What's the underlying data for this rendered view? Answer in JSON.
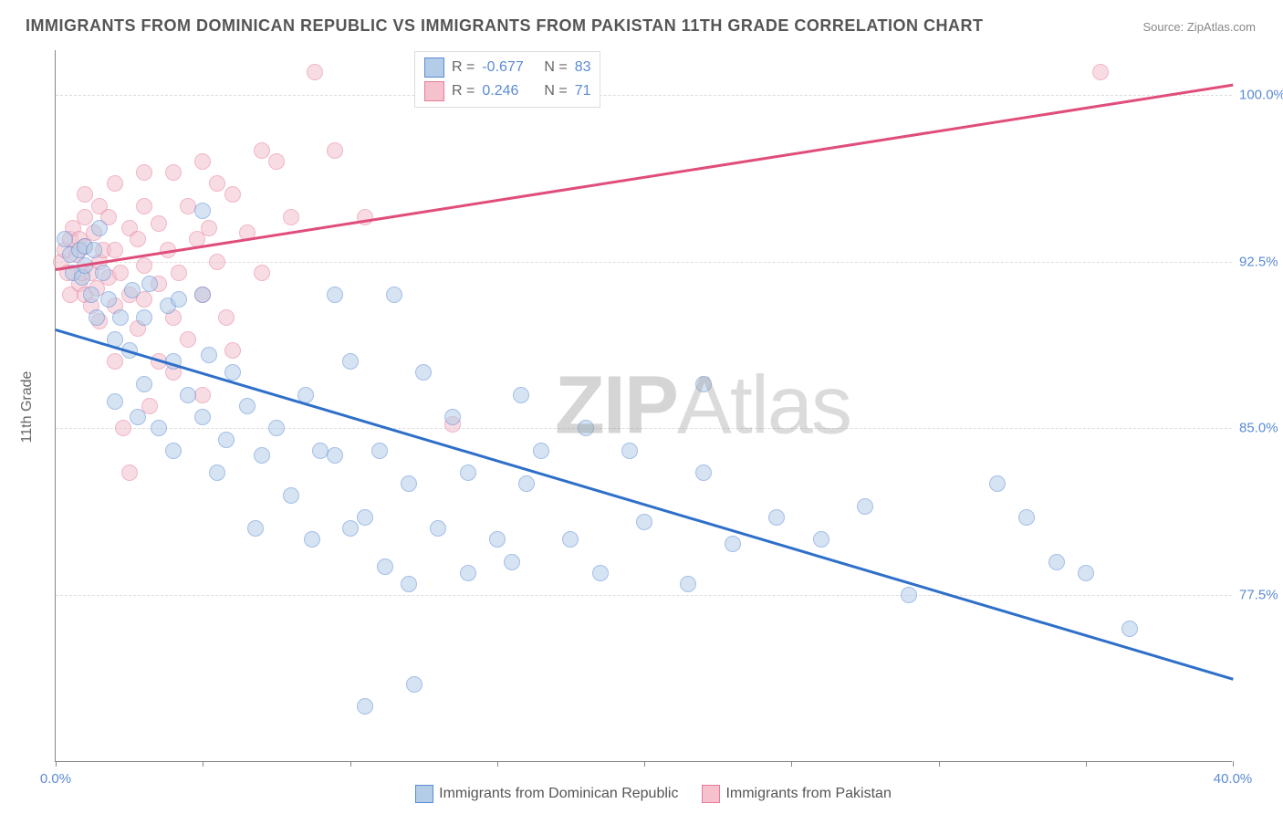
{
  "title": "IMMIGRANTS FROM DOMINICAN REPUBLIC VS IMMIGRANTS FROM PAKISTAN 11TH GRADE CORRELATION CHART",
  "source_prefix": "Source: ",
  "source_link": "ZipAtlas.com",
  "ylabel": "11th Grade",
  "watermark": {
    "bold": "ZIP",
    "light": "Atlas"
  },
  "chart": {
    "type": "scatter",
    "xlim": [
      0.0,
      40.0
    ],
    "ylim": [
      70.0,
      102.0
    ],
    "xticks": [
      0,
      5,
      10,
      15,
      20,
      25,
      30,
      35,
      40
    ],
    "xtick_labels_shown": {
      "0": "0.0%",
      "40": "40.0%"
    },
    "yticks": [
      77.5,
      85.0,
      92.5,
      100.0
    ],
    "ytick_labels": [
      "77.5%",
      "85.0%",
      "92.5%",
      "100.0%"
    ],
    "grid_color": "#dddddd",
    "axis_color": "#888888",
    "background_color": "#ffffff"
  },
  "series": [
    {
      "name": "Immigrants from Dominican Republic",
      "fill_color": "#b3cde8",
      "stroke_color": "#5b8bd4",
      "line_color": "#2e6fc9",
      "R": "-0.677",
      "N": "83",
      "trend": {
        "x1": 0.0,
        "y1": 89.5,
        "x2": 40.0,
        "y2": 73.8
      },
      "points": [
        [
          0.3,
          93.5
        ],
        [
          0.5,
          92.8
        ],
        [
          0.6,
          92.0
        ],
        [
          0.8,
          93.0
        ],
        [
          0.9,
          91.8
        ],
        [
          1.0,
          92.3
        ],
        [
          1.0,
          93.2
        ],
        [
          1.2,
          91.0
        ],
        [
          1.3,
          93.0
        ],
        [
          1.4,
          90.0
        ],
        [
          1.5,
          94.0
        ],
        [
          1.6,
          92.0
        ],
        [
          1.8,
          90.8
        ],
        [
          2.0,
          89.0
        ],
        [
          2.0,
          86.2
        ],
        [
          2.2,
          90.0
        ],
        [
          2.5,
          88.5
        ],
        [
          2.6,
          91.2
        ],
        [
          2.8,
          85.5
        ],
        [
          3.0,
          90.0
        ],
        [
          3.0,
          87.0
        ],
        [
          3.2,
          91.5
        ],
        [
          3.5,
          85.0
        ],
        [
          3.8,
          90.5
        ],
        [
          4.0,
          84.0
        ],
        [
          4.0,
          88.0
        ],
        [
          4.2,
          90.8
        ],
        [
          4.5,
          86.5
        ],
        [
          5.0,
          85.5
        ],
        [
          5.0,
          91.0
        ],
        [
          5.0,
          94.8
        ],
        [
          5.2,
          88.3
        ],
        [
          5.5,
          83.0
        ],
        [
          5.8,
          84.5
        ],
        [
          6.0,
          87.5
        ],
        [
          6.5,
          86.0
        ],
        [
          6.8,
          80.5
        ],
        [
          7.0,
          83.8
        ],
        [
          7.5,
          85.0
        ],
        [
          8.0,
          82.0
        ],
        [
          8.5,
          86.5
        ],
        [
          8.7,
          80.0
        ],
        [
          9.0,
          84.0
        ],
        [
          9.5,
          91.0
        ],
        [
          9.5,
          83.8
        ],
        [
          10.0,
          80.5
        ],
        [
          10.0,
          88.0
        ],
        [
          10.5,
          81.0
        ],
        [
          10.5,
          72.5
        ],
        [
          11.0,
          84.0
        ],
        [
          11.2,
          78.8
        ],
        [
          11.5,
          91.0
        ],
        [
          12.0,
          82.5
        ],
        [
          12.0,
          78.0
        ],
        [
          12.2,
          73.5
        ],
        [
          12.5,
          87.5
        ],
        [
          13.0,
          80.5
        ],
        [
          13.5,
          85.5
        ],
        [
          14.0,
          78.5
        ],
        [
          14.0,
          83.0
        ],
        [
          15.0,
          80.0
        ],
        [
          15.5,
          79.0
        ],
        [
          15.8,
          86.5
        ],
        [
          16.0,
          82.5
        ],
        [
          16.5,
          84.0
        ],
        [
          17.5,
          80.0
        ],
        [
          18.0,
          85.0
        ],
        [
          18.5,
          78.5
        ],
        [
          19.5,
          84.0
        ],
        [
          20.0,
          80.8
        ],
        [
          21.5,
          78.0
        ],
        [
          22.0,
          87.0
        ],
        [
          22.0,
          83.0
        ],
        [
          23.0,
          79.8
        ],
        [
          24.5,
          81.0
        ],
        [
          26.0,
          80.0
        ],
        [
          27.5,
          81.5
        ],
        [
          29.0,
          77.5
        ],
        [
          32.0,
          82.5
        ],
        [
          33.0,
          81.0
        ],
        [
          34.0,
          79.0
        ],
        [
          35.0,
          78.5
        ],
        [
          36.5,
          76.0
        ]
      ]
    },
    {
      "name": "Immigrants from Pakistan",
      "fill_color": "#f4c1cd",
      "stroke_color": "#e57b9a",
      "line_color": "#e04d7a",
      "R": "0.246",
      "N": "71",
      "trend": {
        "x1": 0.0,
        "y1": 92.2,
        "x2": 40.0,
        "y2": 100.5
      },
      "points": [
        [
          0.2,
          92.5
        ],
        [
          0.3,
          93.0
        ],
        [
          0.4,
          92.0
        ],
        [
          0.5,
          93.5
        ],
        [
          0.5,
          91.0
        ],
        [
          0.6,
          94.0
        ],
        [
          0.7,
          92.8
        ],
        [
          0.8,
          93.5
        ],
        [
          0.8,
          91.5
        ],
        [
          0.9,
          92.0
        ],
        [
          1.0,
          93.2
        ],
        [
          1.0,
          94.5
        ],
        [
          1.0,
          91.0
        ],
        [
          1.0,
          95.5
        ],
        [
          1.2,
          92.0
        ],
        [
          1.2,
          90.5
        ],
        [
          1.3,
          93.8
        ],
        [
          1.4,
          91.3
        ],
        [
          1.5,
          95.0
        ],
        [
          1.5,
          92.5
        ],
        [
          1.5,
          89.8
        ],
        [
          1.6,
          93.0
        ],
        [
          1.8,
          91.8
        ],
        [
          1.8,
          94.5
        ],
        [
          2.0,
          96.0
        ],
        [
          2.0,
          93.0
        ],
        [
          2.0,
          90.5
        ],
        [
          2.0,
          88.0
        ],
        [
          2.2,
          92.0
        ],
        [
          2.3,
          85.0
        ],
        [
          2.5,
          94.0
        ],
        [
          2.5,
          91.0
        ],
        [
          2.5,
          83.0
        ],
        [
          2.8,
          93.5
        ],
        [
          2.8,
          89.5
        ],
        [
          3.0,
          96.5
        ],
        [
          3.0,
          95.0
        ],
        [
          3.0,
          90.8
        ],
        [
          3.0,
          92.3
        ],
        [
          3.2,
          86.0
        ],
        [
          3.5,
          94.2
        ],
        [
          3.5,
          91.5
        ],
        [
          3.5,
          88.0
        ],
        [
          3.8,
          93.0
        ],
        [
          4.0,
          96.5
        ],
        [
          4.0,
          90.0
        ],
        [
          4.0,
          87.5
        ],
        [
          4.2,
          92.0
        ],
        [
          4.5,
          95.0
        ],
        [
          4.5,
          89.0
        ],
        [
          4.8,
          93.5
        ],
        [
          5.0,
          91.0
        ],
        [
          5.0,
          97.0
        ],
        [
          5.0,
          86.5
        ],
        [
          5.2,
          94.0
        ],
        [
          5.5,
          96.0
        ],
        [
          5.5,
          92.5
        ],
        [
          5.8,
          90.0
        ],
        [
          6.0,
          95.5
        ],
        [
          6.0,
          88.5
        ],
        [
          6.5,
          93.8
        ],
        [
          7.0,
          97.5
        ],
        [
          7.0,
          92.0
        ],
        [
          7.5,
          97.0
        ],
        [
          8.0,
          94.5
        ],
        [
          8.8,
          101.0
        ],
        [
          9.5,
          97.5
        ],
        [
          10.5,
          94.5
        ],
        [
          13.5,
          85.2
        ],
        [
          16.0,
          100.0
        ],
        [
          35.5,
          101.0
        ]
      ]
    }
  ],
  "legend_top": {
    "r_label": "R =",
    "n_label": "N ="
  },
  "legend_bottom": {
    "items": [
      {
        "series": 0
      },
      {
        "series": 1
      }
    ]
  }
}
